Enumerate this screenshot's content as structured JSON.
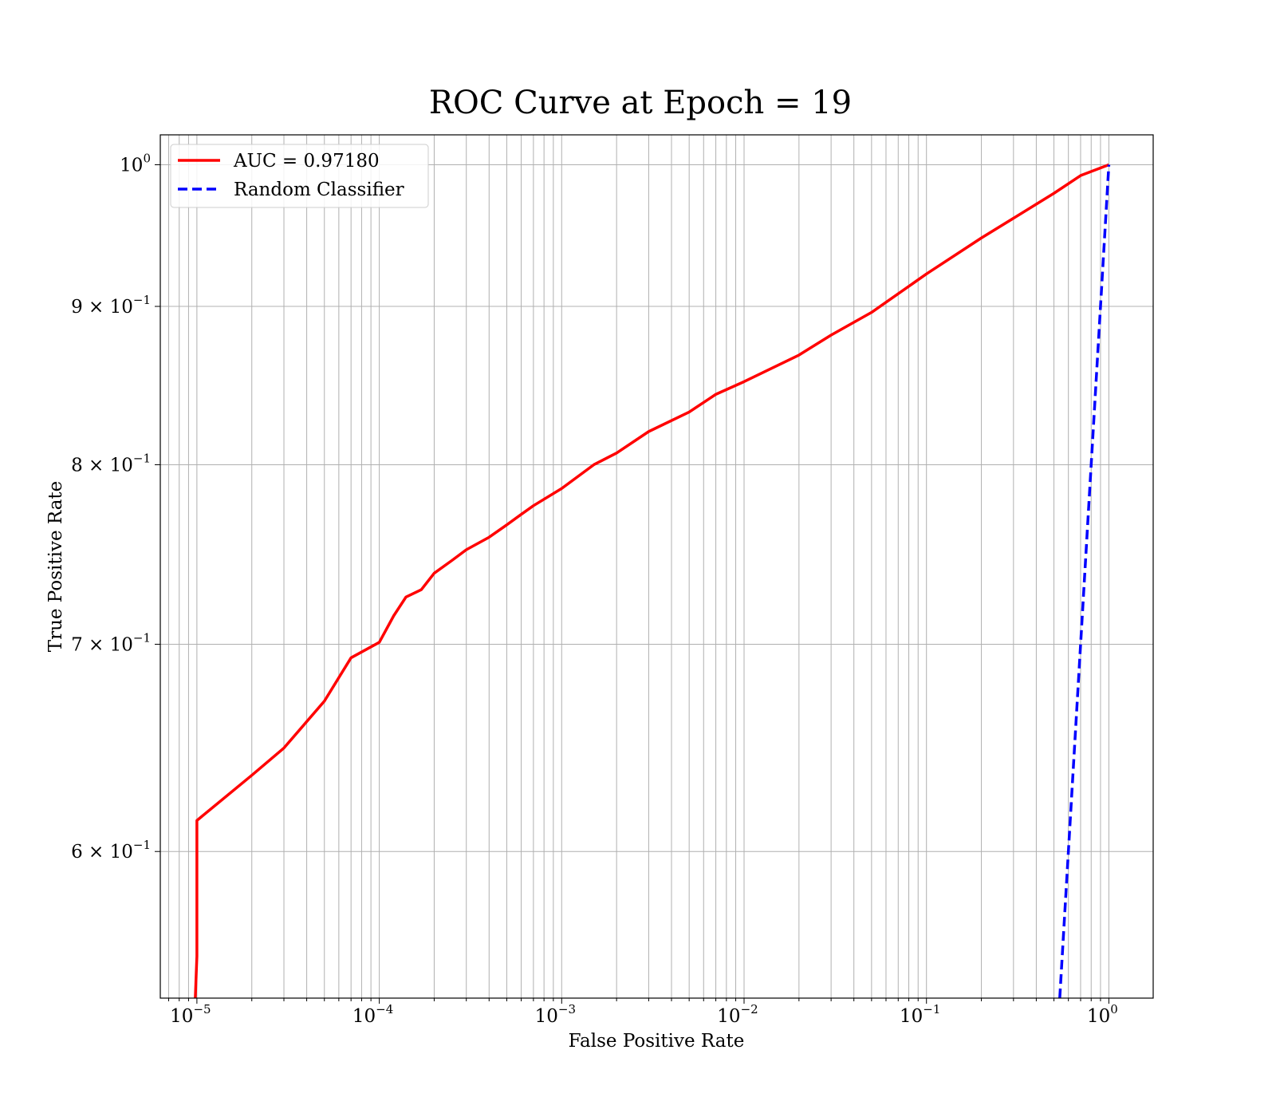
{
  "chart_data": {
    "type": "line",
    "title": "ROC Curve at Epoch = 19",
    "xlabel": "False Positive Rate",
    "ylabel": "True Positive Rate",
    "xscale": "log",
    "yscale": "log",
    "xlim": [
      6.3e-06,
      1.75
    ],
    "ylim": [
      0.538,
      1.0225
    ],
    "grid": true,
    "legend_position": "upper-left",
    "x_ticks": [
      {
        "value": 1e-05,
        "base": "10",
        "exp": "−5"
      },
      {
        "value": 0.0001,
        "base": "10",
        "exp": "−4"
      },
      {
        "value": 0.001,
        "base": "10",
        "exp": "−3"
      },
      {
        "value": 0.01,
        "base": "10",
        "exp": "−2"
      },
      {
        "value": 0.1,
        "base": "10",
        "exp": "−1"
      },
      {
        "value": 1,
        "base": "10",
        "exp": "0"
      }
    ],
    "y_ticks": [
      {
        "value": 0.6,
        "mant": "6 × ",
        "base": "10",
        "exp": "−1"
      },
      {
        "value": 0.7,
        "mant": "7 × ",
        "base": "10",
        "exp": "−1"
      },
      {
        "value": 0.8,
        "mant": "8 × ",
        "base": "10",
        "exp": "−1"
      },
      {
        "value": 0.9,
        "mant": "9 × ",
        "base": "10",
        "exp": "−1"
      },
      {
        "value": 1.0,
        "mant": "",
        "base": "10",
        "exp": "0"
      }
    ],
    "series": [
      {
        "name": "AUC = 0.97180",
        "color": "#ff0000",
        "style": "solid",
        "x": [
          9.8e-06,
          1e-05,
          1e-05,
          1e-05,
          2e-05,
          3e-05,
          5e-05,
          7e-05,
          0.0001,
          0.00012,
          0.00014,
          0.00017,
          0.0002,
          0.00025,
          0.0003,
          0.0004,
          0.0005,
          0.0006,
          0.0007,
          0.001,
          0.0015,
          0.002,
          0.003,
          0.005,
          0.007,
          0.01,
          0.02,
          0.03,
          0.05,
          0.1,
          0.2,
          0.3,
          0.5,
          0.7,
          1.0
        ],
        "y": [
          0.538,
          0.555,
          0.575,
          0.614,
          0.635,
          0.648,
          0.671,
          0.693,
          0.701,
          0.715,
          0.725,
          0.729,
          0.738,
          0.745,
          0.751,
          0.758,
          0.765,
          0.771,
          0.776,
          0.786,
          0.8,
          0.807,
          0.82,
          0.832,
          0.843,
          0.851,
          0.868,
          0.881,
          0.896,
          0.922,
          0.947,
          0.961,
          0.979,
          0.992,
          1.0
        ]
      },
      {
        "name": "Random Classifier",
        "color": "#0000ff",
        "style": "dashed",
        "x": [
          0.538,
          1.0
        ],
        "y": [
          0.538,
          1.0
        ]
      }
    ]
  }
}
